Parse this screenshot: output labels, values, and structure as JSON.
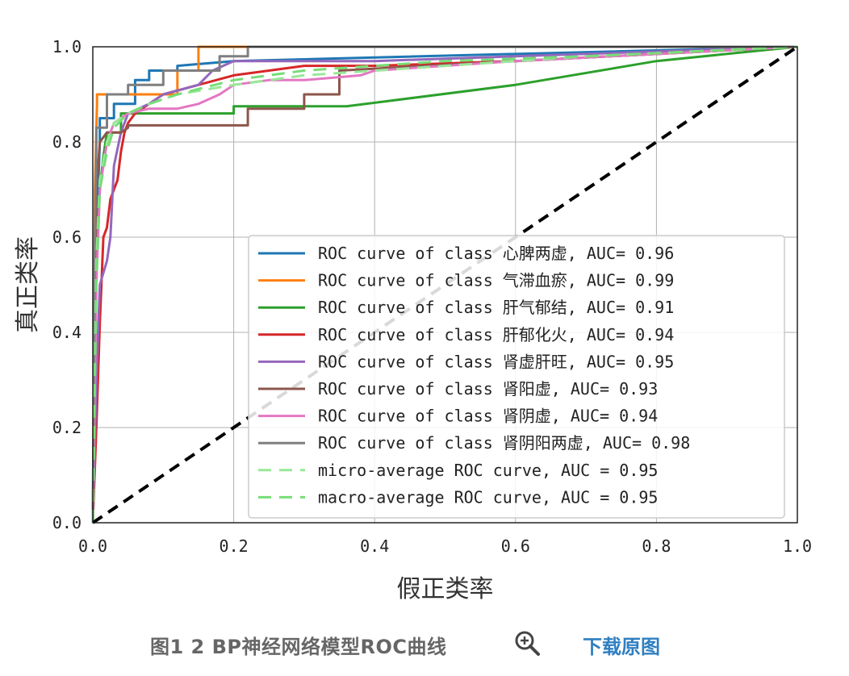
{
  "chart_data": {
    "type": "line",
    "title": "",
    "xlabel": "假正类率",
    "ylabel": "真正类率",
    "xlim": [
      0,
      1
    ],
    "ylim": [
      0,
      1
    ],
    "xticks": [
      "0.0",
      "0.2",
      "0.4",
      "0.6",
      "0.8",
      "1.0"
    ],
    "yticks": [
      "0.0",
      "0.2",
      "0.4",
      "0.6",
      "0.8",
      "1.0"
    ],
    "grid": true,
    "legend_position": "lower-right",
    "series": [
      {
        "name": "ROC curve of class 心脾两虚,  AUC= 0.96",
        "color": "#1f77b4",
        "style": "solid",
        "x": [
          0,
          0.005,
          0.01,
          0.01,
          0.03,
          0.03,
          0.06,
          0.06,
          0.08,
          0.08,
          0.12,
          0.12,
          0.2,
          1.0
        ],
        "y": [
          0,
          0.6,
          0.8,
          0.85,
          0.85,
          0.88,
          0.88,
          0.93,
          0.93,
          0.95,
          0.95,
          0.96,
          0.97,
          1.0
        ]
      },
      {
        "name": "ROC curve of class 气滞血瘀,  AUC= 0.99",
        "color": "#ff7f0e",
        "style": "solid",
        "x": [
          0,
          0.003,
          0.006,
          0.006,
          0.12,
          0.12,
          0.15,
          0.15,
          1.0
        ],
        "y": [
          0,
          0.7,
          0.88,
          0.9,
          0.9,
          0.95,
          0.95,
          1.0,
          1.0
        ]
      },
      {
        "name": "ROC curve of class 肝气郁结,  AUC= 0.91",
        "color": "#2ca02c",
        "style": "solid",
        "x": [
          0,
          0.005,
          0.01,
          0.015,
          0.02,
          0.04,
          0.04,
          0.2,
          0.2,
          0.36,
          0.36,
          0.6,
          0.8,
          1.0
        ],
        "y": [
          0,
          0.55,
          0.7,
          0.77,
          0.82,
          0.82,
          0.86,
          0.86,
          0.875,
          0.875,
          0.875,
          0.92,
          0.97,
          1.0
        ]
      },
      {
        "name": "ROC curve of class 肝郁化火,  AUC= 0.94",
        "color": "#d62728",
        "style": "solid",
        "x": [
          0,
          0.005,
          0.01,
          0.015,
          0.02,
          0.025,
          0.03,
          0.035,
          0.04,
          0.045,
          0.05,
          0.06,
          0.08,
          0.1,
          0.15,
          0.2,
          0.25,
          0.3,
          0.4,
          0.6,
          1.0
        ],
        "y": [
          0,
          0.2,
          0.42,
          0.6,
          0.62,
          0.68,
          0.7,
          0.72,
          0.78,
          0.82,
          0.84,
          0.86,
          0.88,
          0.9,
          0.92,
          0.94,
          0.95,
          0.96,
          0.96,
          0.97,
          1.0
        ]
      },
      {
        "name": "ROC curve of class 肾虚肝旺,  AUC= 0.95",
        "color": "#9467bd",
        "style": "solid",
        "x": [
          0,
          0.005,
          0.01,
          0.02,
          0.025,
          0.03,
          0.04,
          0.05,
          0.08,
          0.1,
          0.15,
          0.17,
          0.2,
          0.4,
          0.6,
          1.0
        ],
        "y": [
          0,
          0.3,
          0.5,
          0.55,
          0.6,
          0.75,
          0.82,
          0.86,
          0.88,
          0.9,
          0.92,
          0.95,
          0.97,
          0.97,
          0.98,
          1.0
        ]
      },
      {
        "name": "ROC curve of class 肾阳虚,  AUC= 0.93",
        "color": "#8c564b",
        "style": "solid",
        "x": [
          0,
          0.005,
          0.01,
          0.02,
          0.04,
          0.05,
          0.05,
          0.1,
          0.1,
          0.22,
          0.22,
          0.3,
          0.3,
          0.35,
          0.35,
          0.6,
          1.0
        ],
        "y": [
          0,
          0.7,
          0.8,
          0.82,
          0.82,
          0.83,
          0.835,
          0.835,
          0.835,
          0.835,
          0.87,
          0.87,
          0.9,
          0.9,
          0.95,
          0.97,
          1.0
        ]
      },
      {
        "name": "ROC curve of class 肾阴虚,  AUC= 0.94",
        "color": "#e377c2",
        "style": "solid",
        "x": [
          0,
          0.005,
          0.01,
          0.02,
          0.03,
          0.04,
          0.05,
          0.08,
          0.12,
          0.15,
          0.18,
          0.2,
          0.25,
          0.3,
          0.38,
          0.4,
          0.6,
          1.0
        ],
        "y": [
          0,
          0.5,
          0.7,
          0.8,
          0.84,
          0.85,
          0.86,
          0.87,
          0.87,
          0.88,
          0.9,
          0.92,
          0.93,
          0.93,
          0.94,
          0.95,
          0.97,
          1.0
        ]
      },
      {
        "name": "ROC curve of class 肾阴阳两虚,  AUC= 0.98",
        "color": "#7f7f7f",
        "style": "solid",
        "x": [
          0,
          0.003,
          0.005,
          0.005,
          0.02,
          0.02,
          0.05,
          0.05,
          0.1,
          0.1,
          0.18,
          0.18,
          0.22,
          0.22,
          1.0
        ],
        "y": [
          0,
          0.6,
          0.8,
          0.83,
          0.83,
          0.9,
          0.9,
          0.92,
          0.92,
          0.95,
          0.95,
          0.98,
          0.98,
          1.0,
          1.0
        ]
      },
      {
        "name": "micro-average ROC curve,  AUC = 0.95",
        "color": "#98e898",
        "style": "dashed",
        "x": [
          0,
          0.005,
          0.01,
          0.02,
          0.03,
          0.05,
          0.08,
          0.12,
          0.2,
          0.3,
          0.5,
          0.7,
          1.0
        ],
        "y": [
          0,
          0.55,
          0.72,
          0.8,
          0.84,
          0.86,
          0.88,
          0.9,
          0.92,
          0.94,
          0.96,
          0.98,
          1.0
        ]
      },
      {
        "name": "macro-average ROC curve,  AUC = 0.95",
        "color": "#77dd77",
        "style": "dashed",
        "x": [
          0,
          0.005,
          0.01,
          0.02,
          0.03,
          0.05,
          0.08,
          0.12,
          0.2,
          0.3,
          0.5,
          0.7,
          1.0
        ],
        "y": [
          0,
          0.5,
          0.7,
          0.78,
          0.83,
          0.86,
          0.88,
          0.9,
          0.93,
          0.95,
          0.97,
          0.98,
          1.0
        ]
      },
      {
        "name": "",
        "color": "#000000",
        "style": "dashed",
        "x": [
          0,
          1
        ],
        "y": [
          0,
          1
        ]
      }
    ]
  },
  "caption": {
    "title": "图1 2 BP神经网络模型ROC曲线",
    "zoom_icon": "magnifier-plus-icon",
    "download_label": "下载原图",
    "download_color": "#2f7fc1"
  }
}
